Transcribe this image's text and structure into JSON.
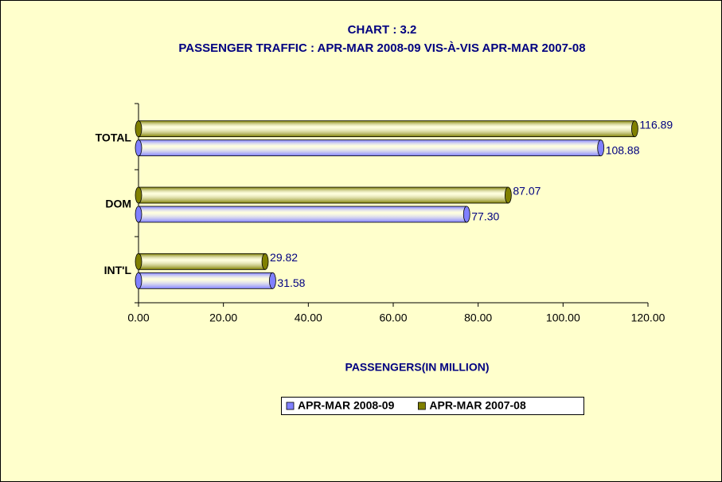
{
  "chart_data": {
    "type": "bar",
    "orientation": "horizontal",
    "title": "CHART : 3.2",
    "subtitle": "PASSENGER TRAFFIC : APR-MAR   2008-09 VIS-À-VIS APR-MAR  2007-08",
    "x_label": "PASSENGERS(IN MILLION)",
    "categories": [
      "TOTAL",
      "DOM",
      "INT'L"
    ],
    "series": [
      {
        "name": "APR-MAR 2008-09",
        "color": "#8080ff",
        "values": [
          108.88,
          77.3,
          31.58
        ],
        "value_labels": [
          "108.88",
          "77.30",
          "31.58"
        ]
      },
      {
        "name": "APR-MAR 2007-08",
        "color": "#808000",
        "values": [
          116.89,
          87.07,
          29.82
        ],
        "value_labels": [
          "116.89",
          "87.07",
          "29.82"
        ]
      }
    ],
    "xlim": [
      0,
      120
    ],
    "xticks": [
      {
        "value": 0,
        "label": "0.00"
      },
      {
        "value": 20,
        "label": "20.00"
      },
      {
        "value": 40,
        "label": "40.00"
      },
      {
        "value": 60,
        "label": "60.00"
      },
      {
        "value": 80,
        "label": "80.00"
      },
      {
        "value": 100,
        "label": "100.00"
      },
      {
        "value": 120,
        "label": "120.00"
      }
    ],
    "legend": "bottom"
  }
}
